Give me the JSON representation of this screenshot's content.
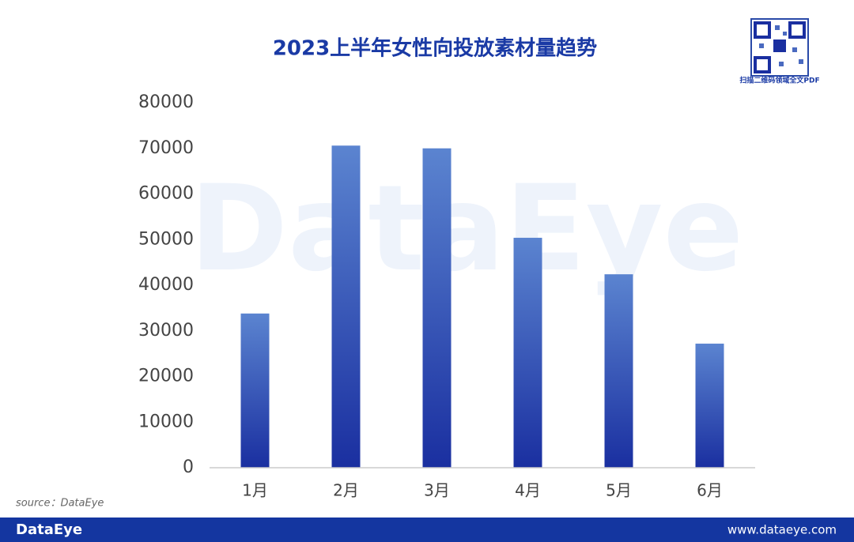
{
  "chart_data": {
    "type": "bar",
    "title": "2023上半年女性向投放素材量趋势",
    "categories": [
      "1月",
      "2月",
      "3月",
      "4月",
      "5月",
      "6月"
    ],
    "values": [
      33800,
      70600,
      70000,
      50400,
      42400,
      27200
    ],
    "color": [
      "#5b84d0",
      "#1a2fa0"
    ],
    "ylim": [
      0,
      80000
    ],
    "yticks": [
      0,
      10000,
      20000,
      30000,
      40000,
      50000,
      60000,
      70000,
      80000
    ],
    "grid": false
  },
  "qr_caption": "扫描二维码领域全文PDF",
  "watermark": "DataEye",
  "source": "source：DataEye",
  "footer": {
    "brand": "DataEye",
    "url": "www.dataeye.com"
  }
}
